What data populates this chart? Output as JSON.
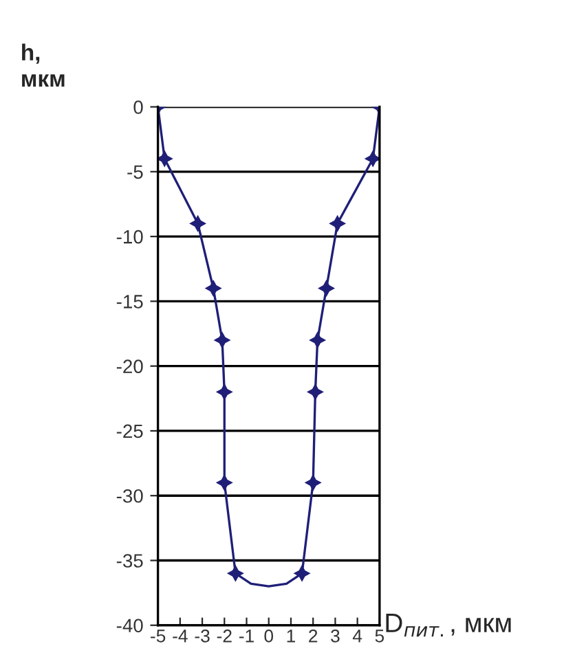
{
  "chart_data": {
    "type": "line",
    "xlabel": "D$_{пит.}$, мкм",
    "ylabel": "h,\nмкм",
    "series": [
      {
        "color": "#1f1f78",
        "marker": "star",
        "x": [
          -5,
          -4.7,
          -3.2,
          -2.5,
          -2.1,
          -2.0,
          -2.0,
          -1.5
        ],
        "values": [
          0,
          -4,
          -9,
          -14,
          -18,
          -22,
          -29,
          -36
        ]
      },
      {
        "color": "#1f1f78",
        "marker": "star",
        "x": [
          1.5,
          2.0,
          2.1,
          2.2,
          2.6,
          3.1,
          4.7,
          5
        ],
        "values": [
          -36,
          -29,
          -22,
          -18,
          -14,
          -9,
          -4,
          0
        ]
      },
      {
        "color": "#1f1f78",
        "marker": "none",
        "x": [
          -1.5,
          -0.8,
          0,
          0.8,
          1.5
        ],
        "values": [
          -36,
          -36.8,
          -37,
          -36.8,
          -36
        ]
      }
    ],
    "xlim": [
      -5,
      5
    ],
    "xticks": [
      -5,
      -4,
      -3,
      -2,
      -1,
      0,
      1,
      2,
      3,
      4,
      5
    ],
    "ylim": [
      -40,
      0
    ],
    "yticks": [
      0,
      -5,
      -10,
      -15,
      -20,
      -25,
      -30,
      -35,
      -40
    ],
    "grid": "y",
    "legend": false
  }
}
